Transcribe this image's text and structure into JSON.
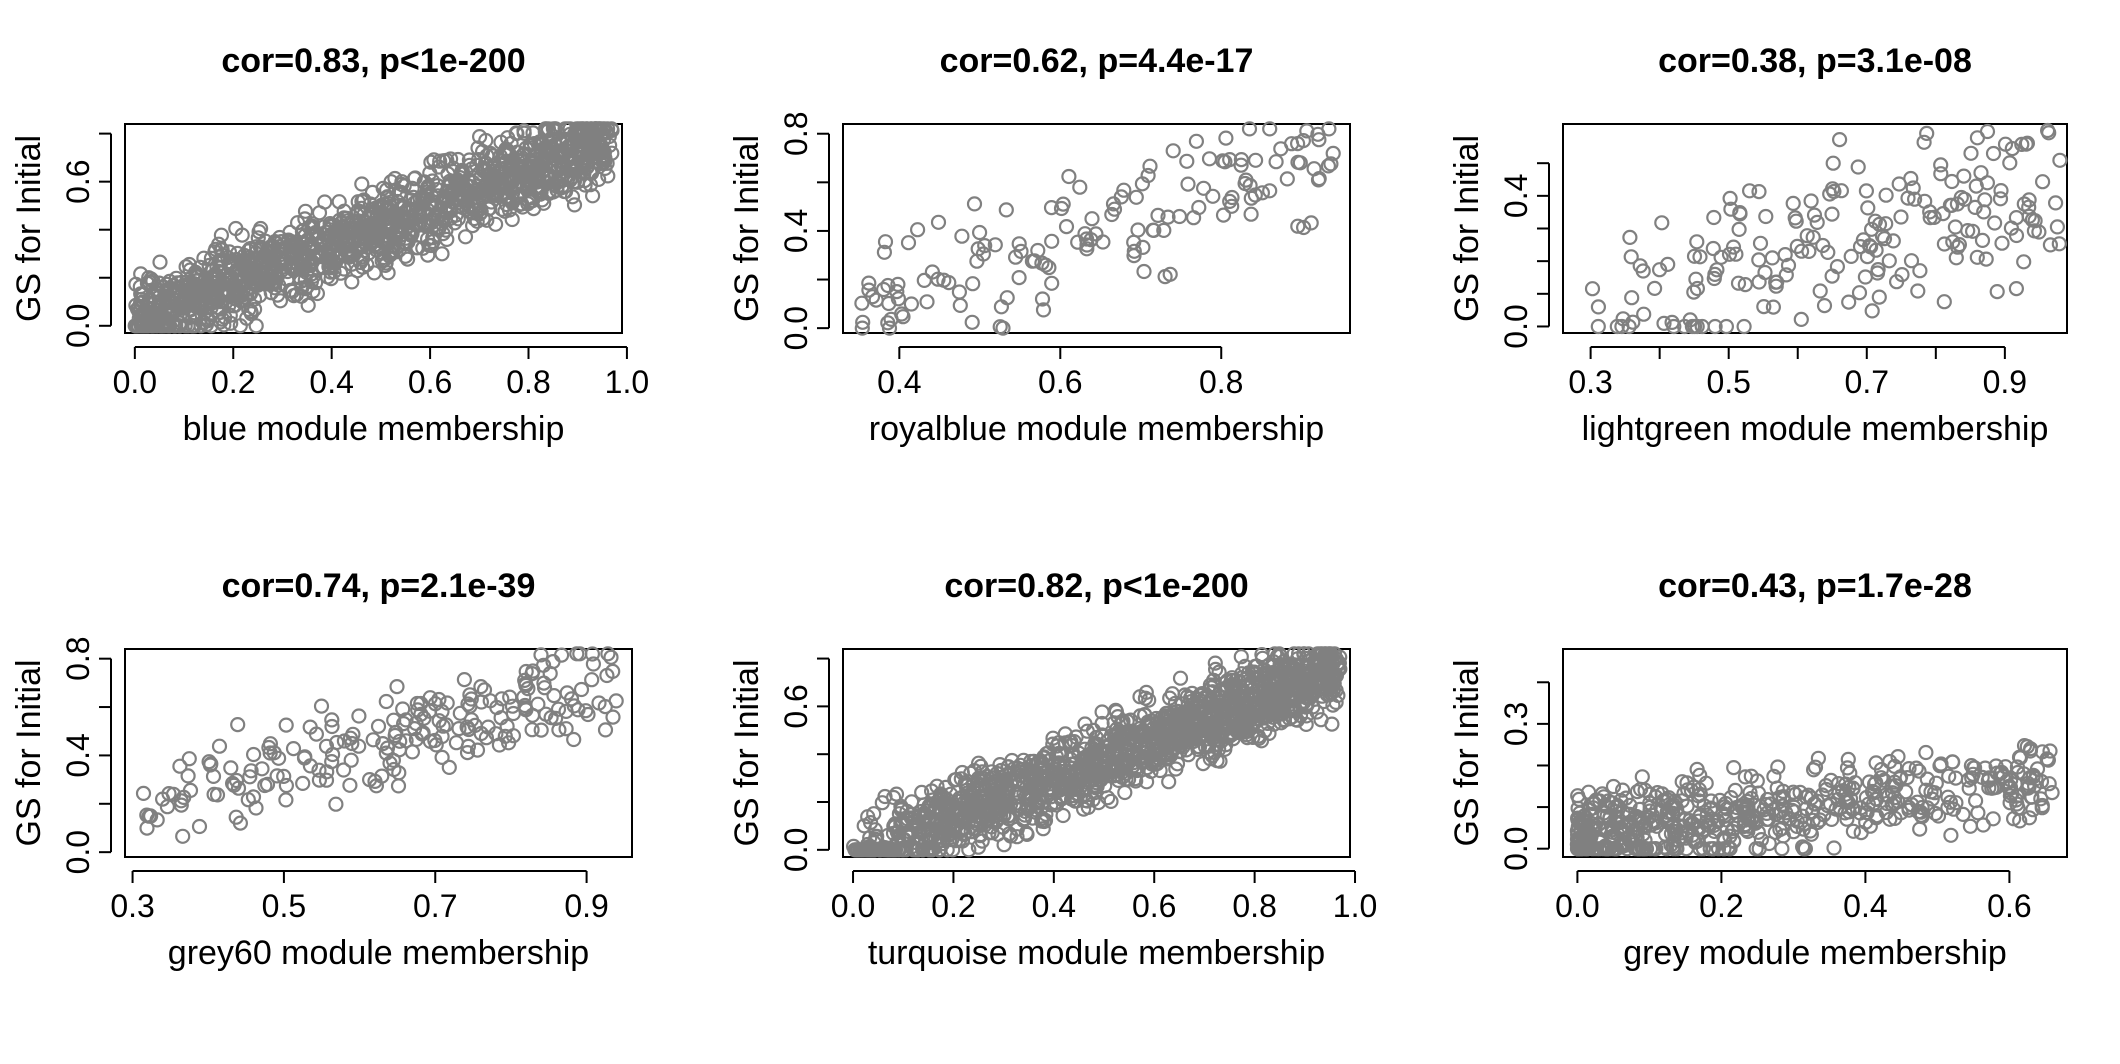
{
  "colors": {
    "points": "#808080",
    "axis": "#000000",
    "background": "#ffffff"
  },
  "chart_data": [
    {
      "type": "scatter",
      "title": "cor=0.83, p<1e-200",
      "xlabel": "blue module membership",
      "ylabel": "GS for Initial",
      "xlim": [
        -0.02,
        0.99
      ],
      "ylim": [
        -0.03,
        0.84
      ],
      "xticks": [
        0.0,
        0.2,
        0.4,
        0.6,
        0.8,
        1.0
      ],
      "xtick_labels": [
        "0.0",
        "0.2",
        "0.4",
        "0.6",
        "0.8",
        "1.0"
      ],
      "yticks": [
        0.0,
        0.2,
        0.4,
        0.6,
        0.8
      ],
      "ytick_labels": [
        "0.0",
        "",
        "",
        "0.6",
        ""
      ],
      "n": 1400,
      "x_range": [
        0.0,
        0.97
      ],
      "slope": 0.78,
      "intercept": 0.02,
      "noise": 0.08,
      "x_skew": 1.0
    },
    {
      "type": "scatter",
      "title": "cor=0.62, p=4.4e-17",
      "xlabel": "royalblue module membership",
      "ylabel": "GS for Initial",
      "xlim": [
        0.33,
        0.96
      ],
      "ylim": [
        -0.02,
        0.84
      ],
      "xticks": [
        0.4,
        0.6,
        0.8
      ],
      "xtick_labels": [
        "0.4",
        "0.6",
        "0.8"
      ],
      "yticks": [
        0.0,
        0.2,
        0.4,
        0.6,
        0.8
      ],
      "ytick_labels": [
        "0.0",
        "",
        "0.4",
        "",
        "0.8"
      ],
      "n": 150,
      "x_range": [
        0.35,
        0.94
      ],
      "slope": 0.95,
      "intercept": -0.21,
      "noise": 0.13,
      "x_skew": 1.0
    },
    {
      "type": "scatter",
      "title": "cor=0.38, p=3.1e-08",
      "xlabel": "lightgreen module membership",
      "ylabel": "GS for Initial",
      "xlim": [
        0.26,
        0.99
      ],
      "ylim": [
        -0.02,
        0.62
      ],
      "xticks": [
        0.3,
        0.4,
        0.5,
        0.6,
        0.7,
        0.8,
        0.9
      ],
      "xtick_labels": [
        "0.3",
        "",
        "0.5",
        "",
        "0.7",
        "",
        "0.9"
      ],
      "yticks": [
        0.0,
        0.1,
        0.2,
        0.3,
        0.4,
        0.5
      ],
      "ytick_labels": [
        "0.0",
        "",
        "",
        "",
        "0.4",
        ""
      ],
      "n": 200,
      "x_range": [
        0.29,
        0.98
      ],
      "slope": 0.55,
      "intercept": -0.12,
      "noise": 0.12,
      "x_skew": 0.7
    },
    {
      "type": "scatter",
      "title": "cor=0.74, p=2.1e-39",
      "xlabel": "grey60 module membership",
      "ylabel": "GS for Initial",
      "xlim": [
        0.29,
        0.96
      ],
      "ylim": [
        -0.02,
        0.84
      ],
      "xticks": [
        0.3,
        0.5,
        0.7,
        0.9
      ],
      "xtick_labels": [
        "0.3",
        "0.5",
        "0.7",
        "0.9"
      ],
      "yticks": [
        0.0,
        0.2,
        0.4,
        0.6,
        0.8
      ],
      "ytick_labels": [
        "0.0",
        "",
        "0.4",
        "",
        "0.8"
      ],
      "n": 220,
      "x_range": [
        0.31,
        0.94
      ],
      "slope": 0.85,
      "intercept": -0.08,
      "noise": 0.1,
      "x_skew": 0.8
    },
    {
      "type": "scatter",
      "title": "cor=0.82, p<1e-200",
      "xlabel": "turquoise module membership",
      "ylabel": "GS for Initial",
      "xlim": [
        -0.02,
        0.99
      ],
      "ylim": [
        -0.03,
        0.84
      ],
      "xticks": [
        0.0,
        0.2,
        0.4,
        0.6,
        0.8,
        1.0
      ],
      "xtick_labels": [
        "0.0",
        "0.2",
        "0.4",
        "0.6",
        "0.8",
        "1.0"
      ],
      "yticks": [
        0.0,
        0.2,
        0.4,
        0.6,
        0.8
      ],
      "ytick_labels": [
        "0.0",
        "",
        "",
        "0.6",
        ""
      ],
      "n": 1500,
      "x_range": [
        0.0,
        0.97
      ],
      "slope": 0.8,
      "intercept": -0.02,
      "noise": 0.08,
      "x_skew": 0.8
    },
    {
      "type": "scatter",
      "title": "cor=0.43, p=1.7e-28",
      "xlabel": "grey module membership",
      "ylabel": "GS for Initial",
      "xlim": [
        -0.02,
        0.68
      ],
      "ylim": [
        -0.02,
        0.48
      ],
      "xticks": [
        0.0,
        0.2,
        0.4,
        0.6
      ],
      "xtick_labels": [
        "0.0",
        "0.2",
        "0.4",
        "0.6"
      ],
      "yticks": [
        0.0,
        0.1,
        0.2,
        0.3,
        0.4
      ],
      "ytick_labels": [
        "0.0",
        "",
        "",
        "0.3",
        ""
      ],
      "n": 600,
      "x_range": [
        0.0,
        0.66
      ],
      "slope": 0.22,
      "intercept": 0.03,
      "noise": 0.045,
      "x_skew": 1.6
    }
  ]
}
